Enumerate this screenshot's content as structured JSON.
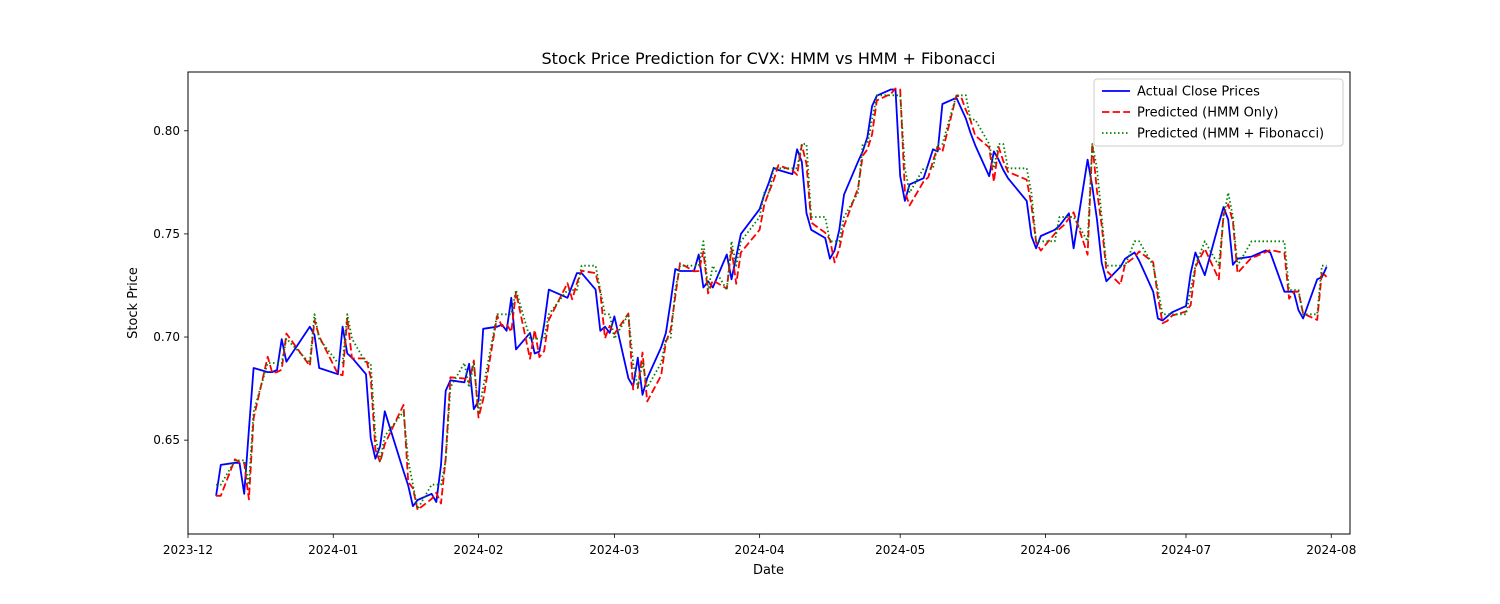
{
  "chart_data": {
    "type": "line",
    "title": "Stock Price Prediction for CVX: HMM vs HMM + Fibonacci",
    "xlabel": "Date",
    "ylabel": "Stock Price",
    "x_axis_type": "date",
    "xlim": [
      "2023-12-01",
      "2024-08-05"
    ],
    "ylim": [
      0.6045,
      0.8285
    ],
    "x_ticks": [
      "2023-12-01",
      "2024-01-01",
      "2024-02-01",
      "2024-03-01",
      "2024-04-01",
      "2024-05-01",
      "2024-06-01",
      "2024-07-01",
      "2024-08-01"
    ],
    "x_tick_labels": [
      "2023-12",
      "2024-01",
      "2024-02",
      "2024-03",
      "2024-04",
      "2024-05",
      "2024-06",
      "2024-07",
      "2024-08"
    ],
    "y_ticks": [
      0.65,
      0.7,
      0.75,
      0.8
    ],
    "y_tick_labels": [
      "0.65",
      "0.70",
      "0.75",
      "0.80"
    ],
    "grid": false,
    "legend_position": "top-right",
    "series": [
      {
        "name": "Actual Close Prices",
        "color": "#0000ff",
        "style": "solid",
        "points": [
          [
            "2023-12-07",
            0.623
          ],
          [
            "2023-12-08",
            0.638
          ],
          [
            "2023-12-11",
            0.639
          ],
          [
            "2023-12-12",
            0.639
          ],
          [
            "2023-12-13",
            0.624
          ],
          [
            "2023-12-14",
            0.655
          ],
          [
            "2023-12-15",
            0.685
          ],
          [
            "2023-12-18",
            0.683
          ],
          [
            "2023-12-19",
            0.683
          ],
          [
            "2023-12-20",
            0.684
          ],
          [
            "2023-12-21",
            0.699
          ],
          [
            "2023-12-22",
            0.688
          ],
          [
            "2023-12-27",
            0.705
          ],
          [
            "2023-12-28",
            0.701
          ],
          [
            "2023-12-29",
            0.685
          ],
          [
            "2024-01-02",
            0.682
          ],
          [
            "2024-01-03",
            0.705
          ],
          [
            "2024-01-04",
            0.692
          ],
          [
            "2024-01-05",
            0.69
          ],
          [
            "2024-01-08",
            0.682
          ],
          [
            "2024-01-09",
            0.651
          ],
          [
            "2024-01-10",
            0.641
          ],
          [
            "2024-01-11",
            0.647
          ],
          [
            "2024-01-12",
            0.664
          ],
          [
            "2024-01-16",
            0.635
          ],
          [
            "2024-01-17",
            0.628
          ],
          [
            "2024-01-18",
            0.618
          ],
          [
            "2024-01-19",
            0.621
          ],
          [
            "2024-01-22",
            0.624
          ],
          [
            "2024-01-23",
            0.62
          ],
          [
            "2024-01-24",
            0.638
          ],
          [
            "2024-01-25",
            0.674
          ],
          [
            "2024-01-26",
            0.679
          ],
          [
            "2024-01-29",
            0.678
          ],
          [
            "2024-01-30",
            0.687
          ],
          [
            "2024-01-31",
            0.665
          ],
          [
            "2024-02-01",
            0.669
          ],
          [
            "2024-02-02",
            0.704
          ],
          [
            "2024-02-05",
            0.705
          ],
          [
            "2024-02-06",
            0.706
          ],
          [
            "2024-02-07",
            0.703
          ],
          [
            "2024-02-08",
            0.719
          ],
          [
            "2024-02-09",
            0.694
          ],
          [
            "2024-02-12",
            0.702
          ],
          [
            "2024-02-13",
            0.692
          ],
          [
            "2024-02-14",
            0.693
          ],
          [
            "2024-02-15",
            0.706
          ],
          [
            "2024-02-16",
            0.723
          ],
          [
            "2024-02-20",
            0.719
          ],
          [
            "2024-02-21",
            0.725
          ],
          [
            "2024-02-22",
            0.731
          ],
          [
            "2024-02-23",
            0.731
          ],
          [
            "2024-02-26",
            0.723
          ],
          [
            "2024-02-27",
            0.703
          ],
          [
            "2024-02-28",
            0.705
          ],
          [
            "2024-02-29",
            0.702
          ],
          [
            "2024-03-01",
            0.71
          ],
          [
            "2024-03-04",
            0.68
          ],
          [
            "2024-03-05",
            0.676
          ],
          [
            "2024-03-06",
            0.69
          ],
          [
            "2024-03-07",
            0.672
          ],
          [
            "2024-03-08",
            0.68
          ],
          [
            "2024-03-11",
            0.695
          ],
          [
            "2024-03-12",
            0.702
          ],
          [
            "2024-03-13",
            0.717
          ],
          [
            "2024-03-14",
            0.733
          ],
          [
            "2024-03-15",
            0.732
          ],
          [
            "2024-03-18",
            0.732
          ],
          [
            "2024-03-19",
            0.74
          ],
          [
            "2024-03-20",
            0.724
          ],
          [
            "2024-03-21",
            0.727
          ],
          [
            "2024-03-22",
            0.724
          ],
          [
            "2024-03-25",
            0.74
          ],
          [
            "2024-03-26",
            0.728
          ],
          [
            "2024-03-27",
            0.739
          ],
          [
            "2024-03-28",
            0.75
          ],
          [
            "2024-04-01",
            0.762
          ],
          [
            "2024-04-02",
            0.769
          ],
          [
            "2024-04-03",
            0.775
          ],
          [
            "2024-04-04",
            0.782
          ],
          [
            "2024-04-05",
            0.781
          ],
          [
            "2024-04-08",
            0.779
          ],
          [
            "2024-04-09",
            0.791
          ],
          [
            "2024-04-10",
            0.785
          ],
          [
            "2024-04-11",
            0.76
          ],
          [
            "2024-04-12",
            0.752
          ],
          [
            "2024-04-15",
            0.748
          ],
          [
            "2024-04-16",
            0.738
          ],
          [
            "2024-04-17",
            0.742
          ],
          [
            "2024-04-18",
            0.752
          ],
          [
            "2024-04-19",
            0.769
          ],
          [
            "2024-04-22",
            0.785
          ],
          [
            "2024-04-23",
            0.79
          ],
          [
            "2024-04-24",
            0.797
          ],
          [
            "2024-04-25",
            0.812
          ],
          [
            "2024-04-26",
            0.817
          ],
          [
            "2024-04-29",
            0.82
          ],
          [
            "2024-04-30",
            0.82
          ],
          [
            "2024-05-01",
            0.778
          ],
          [
            "2024-05-02",
            0.766
          ],
          [
            "2024-05-03",
            0.774
          ],
          [
            "2024-05-06",
            0.777
          ],
          [
            "2024-05-07",
            0.784
          ],
          [
            "2024-05-08",
            0.791
          ],
          [
            "2024-05-09",
            0.79
          ],
          [
            "2024-05-10",
            0.813
          ],
          [
            "2024-05-13",
            0.816
          ],
          [
            "2024-05-14",
            0.811
          ],
          [
            "2024-05-15",
            0.806
          ],
          [
            "2024-05-16",
            0.799
          ],
          [
            "2024-05-17",
            0.793
          ],
          [
            "2024-05-20",
            0.778
          ],
          [
            "2024-05-21",
            0.79
          ],
          [
            "2024-05-22",
            0.786
          ],
          [
            "2024-05-23",
            0.781
          ],
          [
            "2024-05-24",
            0.777
          ],
          [
            "2024-05-28",
            0.766
          ],
          [
            "2024-05-29",
            0.749
          ],
          [
            "2024-05-30",
            0.743
          ],
          [
            "2024-05-31",
            0.749
          ],
          [
            "2024-06-03",
            0.752
          ],
          [
            "2024-06-04",
            0.754
          ],
          [
            "2024-06-05",
            0.757
          ],
          [
            "2024-06-06",
            0.76
          ],
          [
            "2024-06-07",
            0.743
          ],
          [
            "2024-06-10",
            0.786
          ],
          [
            "2024-06-11",
            0.773
          ],
          [
            "2024-06-12",
            0.757
          ],
          [
            "2024-06-13",
            0.736
          ],
          [
            "2024-06-14",
            0.727
          ],
          [
            "2024-06-17",
            0.734
          ],
          [
            "2024-06-18",
            0.738
          ],
          [
            "2024-06-20",
            0.741
          ],
          [
            "2024-06-21",
            0.737
          ],
          [
            "2024-06-24",
            0.722
          ],
          [
            "2024-06-25",
            0.709
          ],
          [
            "2024-06-26",
            0.708
          ],
          [
            "2024-06-27",
            0.71
          ],
          [
            "2024-06-28",
            0.712
          ],
          [
            "2024-07-01",
            0.715
          ],
          [
            "2024-07-02",
            0.731
          ],
          [
            "2024-07-03",
            0.741
          ],
          [
            "2024-07-05",
            0.73
          ],
          [
            "2024-07-08",
            0.755
          ],
          [
            "2024-07-09",
            0.763
          ],
          [
            "2024-07-10",
            0.757
          ],
          [
            "2024-07-11",
            0.735
          ],
          [
            "2024-07-12",
            0.738
          ],
          [
            "2024-07-15",
            0.739
          ],
          [
            "2024-07-16",
            0.74
          ],
          [
            "2024-07-17",
            0.741
          ],
          [
            "2024-07-18",
            0.742
          ],
          [
            "2024-07-19",
            0.741
          ],
          [
            "2024-07-22",
            0.722
          ],
          [
            "2024-07-23",
            0.722
          ],
          [
            "2024-07-24",
            0.722
          ],
          [
            "2024-07-25",
            0.713
          ],
          [
            "2024-07-26",
            0.709
          ],
          [
            "2024-07-29",
            0.728
          ],
          [
            "2024-07-30",
            0.729
          ],
          [
            "2024-07-31",
            0.734
          ]
        ]
      },
      {
        "name": "Predicted (HMM Only)",
        "color": "#ff0000",
        "style": "dashed",
        "points": []
      },
      {
        "name": "Predicted (HMM + Fibonacci)",
        "color": "#008000",
        "style": "dotted",
        "points": []
      }
    ]
  }
}
